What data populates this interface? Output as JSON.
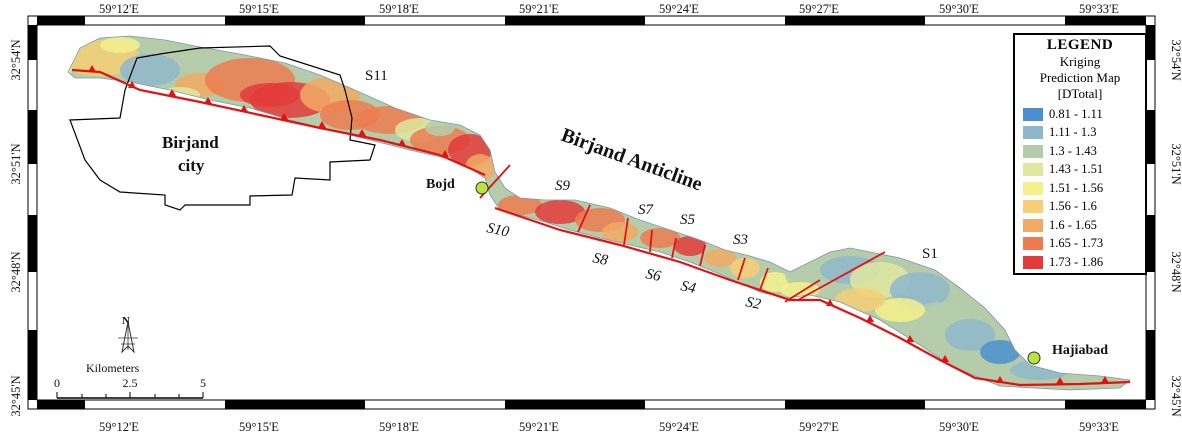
{
  "lon_labels": [
    "59°12'E",
    "59°15'E",
    "59°18'E",
    "59°21'E",
    "59°24'E",
    "59°27'E",
    "59°30'E",
    "59°33'E"
  ],
  "lat_labels": [
    "32°54'N",
    "32°51'N",
    "32°48'N",
    "32°45'N"
  ],
  "legend": {
    "title": "LEGEND",
    "subtitle_lines": [
      "Kriging",
      "Prediction Map",
      "[DTotal]"
    ],
    "classes": [
      {
        "label": "0.81 - 1.11",
        "color": "#4a90d0"
      },
      {
        "label": "1.11 - 1.3",
        "color": "#8fb7cc"
      },
      {
        "label": "1.3 - 1.43",
        "color": "#b5ccaa"
      },
      {
        "label": "1.43 - 1.51",
        "color": "#dfe7a0"
      },
      {
        "label": "1.51 - 1.56",
        "color": "#f5f08c"
      },
      {
        "label": "1.56 - 1.6",
        "color": "#f6cf75"
      },
      {
        "label": "1.6 - 1.65",
        "color": "#f2a964"
      },
      {
        "label": "1.65 - 1.73",
        "color": "#ec7c50"
      },
      {
        "label": "1.73 - 1.86",
        "color": "#e33b3b"
      }
    ]
  },
  "places": {
    "city": "Birjand",
    "city2": "city",
    "bojd": "Bojd",
    "hajiabad": "Hajiabad",
    "anticline": "Birjand Anticline"
  },
  "segments": [
    "S11",
    "S10",
    "S9",
    "S8",
    "S7",
    "S6",
    "S5",
    "S4",
    "S3",
    "S2",
    "S1"
  ],
  "scale": {
    "unit": "Kilometers",
    "ticks": [
      "0",
      "2.5",
      "5"
    ]
  },
  "north": "N"
}
